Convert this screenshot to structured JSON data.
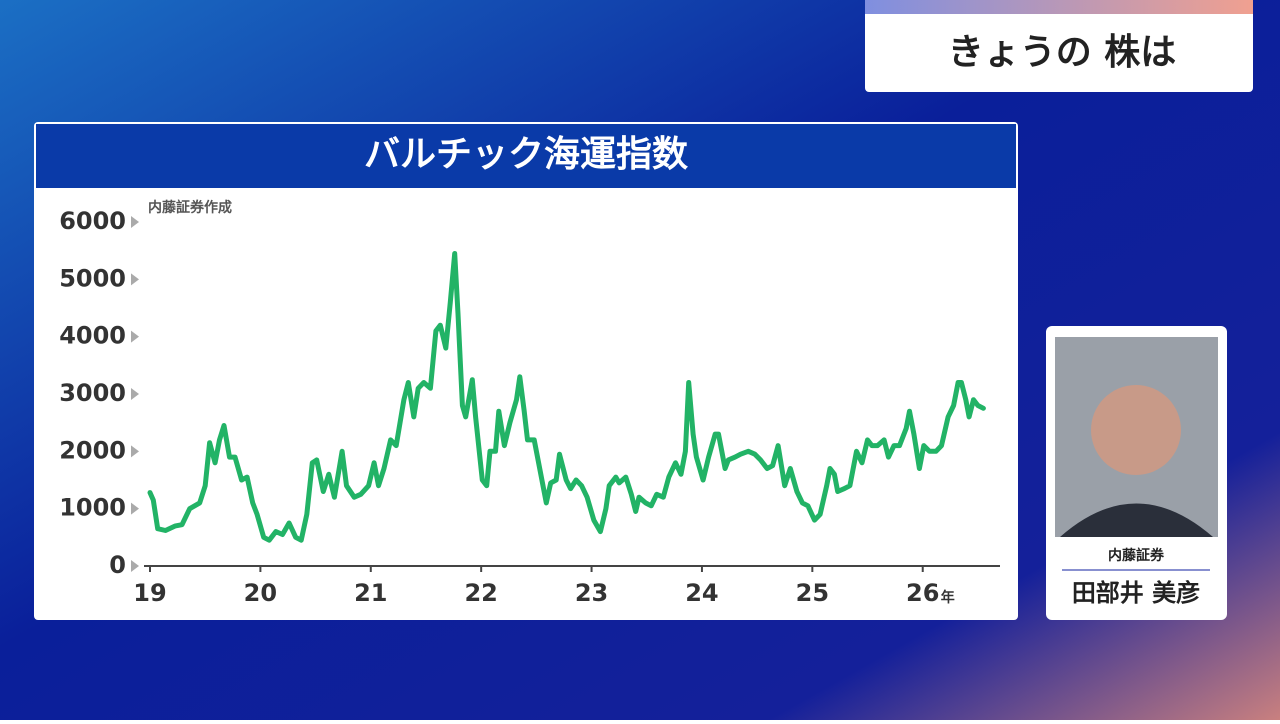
{
  "header": {
    "title": "きょうの 株は"
  },
  "presenter": {
    "company": "内藤証券",
    "name": "田部井 美彦"
  },
  "chart_data": {
    "type": "line",
    "title": "バルチック海運指数",
    "note": "内藤証券作成",
    "xlabel": "年",
    "x": [
      19.0,
      19.03,
      19.07,
      19.14,
      19.23,
      19.29,
      19.36,
      19.45,
      19.5,
      19.54,
      19.59,
      19.63,
      19.67,
      19.72,
      19.77,
      19.83,
      19.88,
      19.93,
      19.97,
      20.03,
      20.08,
      20.14,
      20.2,
      20.26,
      20.32,
      20.37,
      20.42,
      20.47,
      20.51,
      20.57,
      20.62,
      20.67,
      20.74,
      20.78,
      20.85,
      20.91,
      20.98,
      21.03,
      21.07,
      21.12,
      21.18,
      21.23,
      21.3,
      21.34,
      21.39,
      21.43,
      21.48,
      21.54,
      21.59,
      21.63,
      21.68,
      21.72,
      21.76,
      21.79,
      21.83,
      21.86,
      21.92,
      21.95,
      22.01,
      22.05,
      22.08,
      22.13,
      22.16,
      22.21,
      22.26,
      22.32,
      22.35,
      22.39,
      22.42,
      22.48,
      22.53,
      22.59,
      22.63,
      22.68,
      22.71,
      22.77,
      22.81,
      22.86,
      22.91,
      22.96,
      23.02,
      23.08,
      23.13,
      23.16,
      23.22,
      23.25,
      23.31,
      23.36,
      23.4,
      23.43,
      23.49,
      23.54,
      23.59,
      23.65,
      23.7,
      23.76,
      23.81,
      23.85,
      23.88,
      23.92,
      23.95,
      24.01,
      24.06,
      24.12,
      24.15,
      24.21,
      24.24,
      24.3,
      24.35,
      24.42,
      24.48,
      24.53,
      24.59,
      24.64,
      24.69,
      24.75,
      24.8,
      24.86,
      24.91,
      24.96,
      25.02,
      25.07,
      25.13,
      25.16,
      25.2,
      25.23,
      25.29,
      25.34,
      25.4,
      25.45,
      25.5,
      25.54,
      25.59,
      25.65,
      25.69,
      25.74,
      25.79,
      25.85,
      25.88,
      25.92,
      25.97,
      26.01,
      26.06,
      26.12,
      26.17,
      26.23,
      26.28,
      26.32,
      26.35,
      26.39,
      26.42,
      26.46,
      26.5,
      26.55
    ],
    "series": [
      {
        "name": "バルチック海運指数",
        "color": "#22b366",
        "values": [
          1280,
          1150,
          650,
          620,
          700,
          720,
          1000,
          1100,
          1400,
          2150,
          1800,
          2200,
          2450,
          1900,
          1900,
          1500,
          1550,
          1100,
          900,
          500,
          450,
          600,
          550,
          750,
          500,
          450,
          900,
          1800,
          1850,
          1300,
          1600,
          1200,
          2000,
          1400,
          1200,
          1250,
          1400,
          1800,
          1400,
          1700,
          2200,
          2100,
          2900,
          3200,
          2600,
          3100,
          3200,
          3100,
          4100,
          4200,
          3800,
          4600,
          5450,
          4400,
          2800,
          2600,
          3250,
          2600,
          1500,
          1400,
          2000,
          2000,
          2700,
          2100,
          2500,
          2900,
          3300,
          2700,
          2200,
          2200,
          1700,
          1100,
          1450,
          1500,
          1950,
          1500,
          1350,
          1500,
          1400,
          1200,
          800,
          600,
          1000,
          1400,
          1550,
          1450,
          1550,
          1250,
          950,
          1200,
          1100,
          1050,
          1250,
          1200,
          1550,
          1800,
          1600,
          2000,
          3200,
          2300,
          1900,
          1500,
          1900,
          2300,
          2300,
          1700,
          1850,
          1900,
          1950,
          2000,
          1950,
          1850,
          1700,
          1750,
          2100,
          1400,
          1700,
          1300,
          1100,
          1050,
          800,
          900,
          1400,
          1700,
          1600,
          1300,
          1350,
          1400,
          2000,
          1800,
          2200,
          2100,
          2100,
          2200,
          1900,
          2100,
          2100,
          2400,
          2700,
          2300,
          1700,
          2100,
          2000,
          2000,
          2100,
          2600,
          2800,
          3200,
          3200,
          2900,
          2600,
          2900,
          2800,
          2750
        ]
      }
    ],
    "xlim": [
      19,
      26.7
    ],
    "xticks": [
      19,
      20,
      21,
      22,
      23,
      24,
      25,
      26
    ],
    "ylim": [
      0,
      6000
    ],
    "yticks": [
      0,
      1000,
      2000,
      3000,
      4000,
      5000,
      6000
    ]
  }
}
